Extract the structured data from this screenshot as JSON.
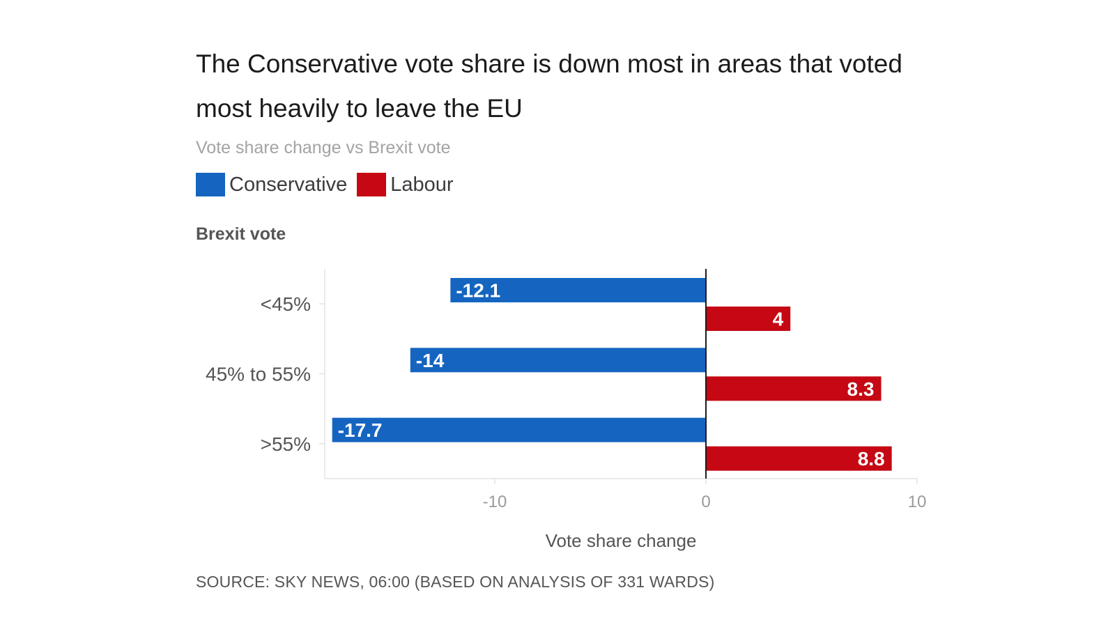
{
  "header": {
    "title": "The Conservative vote share is down most in areas that voted most heavily to leave the EU",
    "subtitle": "Vote share change vs Brexit vote",
    "y_header": "Brexit vote"
  },
  "footer": {
    "source": "SOURCE: SKY NEWS, 06:00 (BASED ON ANALYSIS OF 331 WARDS)"
  },
  "chart_data": {
    "type": "bar",
    "orientation": "horizontal",
    "categories": [
      "<45%",
      "45% to 55%",
      ">55%"
    ],
    "series": [
      {
        "name": "Conservative",
        "color": "#1565c0",
        "values": [
          -12.1,
          -14,
          -17.7
        ]
      },
      {
        "name": "Labour",
        "color": "#c50813",
        "values": [
          4,
          8.3,
          8.8
        ]
      }
    ],
    "xlabel": "Vote share change",
    "ylabel": "Brexit vote",
    "xlim": [
      -18,
      10
    ],
    "xticks": [
      -10,
      0,
      10
    ],
    "legend": "top-left",
    "grid": false
  }
}
